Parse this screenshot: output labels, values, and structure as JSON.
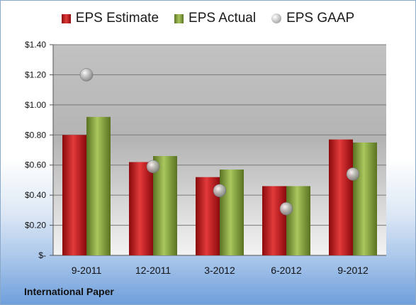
{
  "chart_data": {
    "type": "bar",
    "categories": [
      "9-2011",
      "12-2011",
      "3-2012",
      "6-2012",
      "9-2012"
    ],
    "series": [
      {
        "name": "EPS Estimate",
        "kind": "bar",
        "values": [
          0.8,
          0.62,
          0.52,
          0.46,
          0.77
        ],
        "color": "#c8262a"
      },
      {
        "name": "EPS Actual",
        "kind": "bar",
        "values": [
          0.92,
          0.66,
          0.57,
          0.46,
          0.75
        ],
        "color": "#8fae44"
      },
      {
        "name": "EPS GAAP",
        "kind": "marker",
        "values": [
          1.2,
          0.59,
          0.43,
          0.31,
          0.54
        ],
        "color": "#b0b0b0"
      }
    ],
    "yticks": [
      "$-",
      "$0.20",
      "$0.40",
      "$0.60",
      "$0.80",
      "$1.00",
      "$1.20",
      "$1.40"
    ],
    "ylim": [
      0,
      1.4
    ],
    "grid": true,
    "legend_position": "top"
  },
  "company": "International Paper"
}
